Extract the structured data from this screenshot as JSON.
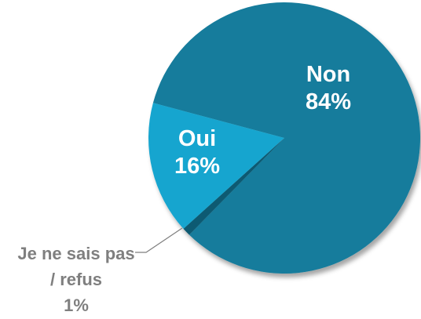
{
  "chart_data": {
    "type": "pie",
    "categories": [
      "Non",
      "Je ne sais pas / refus",
      "Oui"
    ],
    "values": [
      84,
      1,
      16
    ],
    "value_labels": [
      "84%",
      "1%",
      "16%"
    ],
    "colors": [
      "#137c9c",
      "#0b5a72",
      "#18a5cf"
    ]
  }
}
